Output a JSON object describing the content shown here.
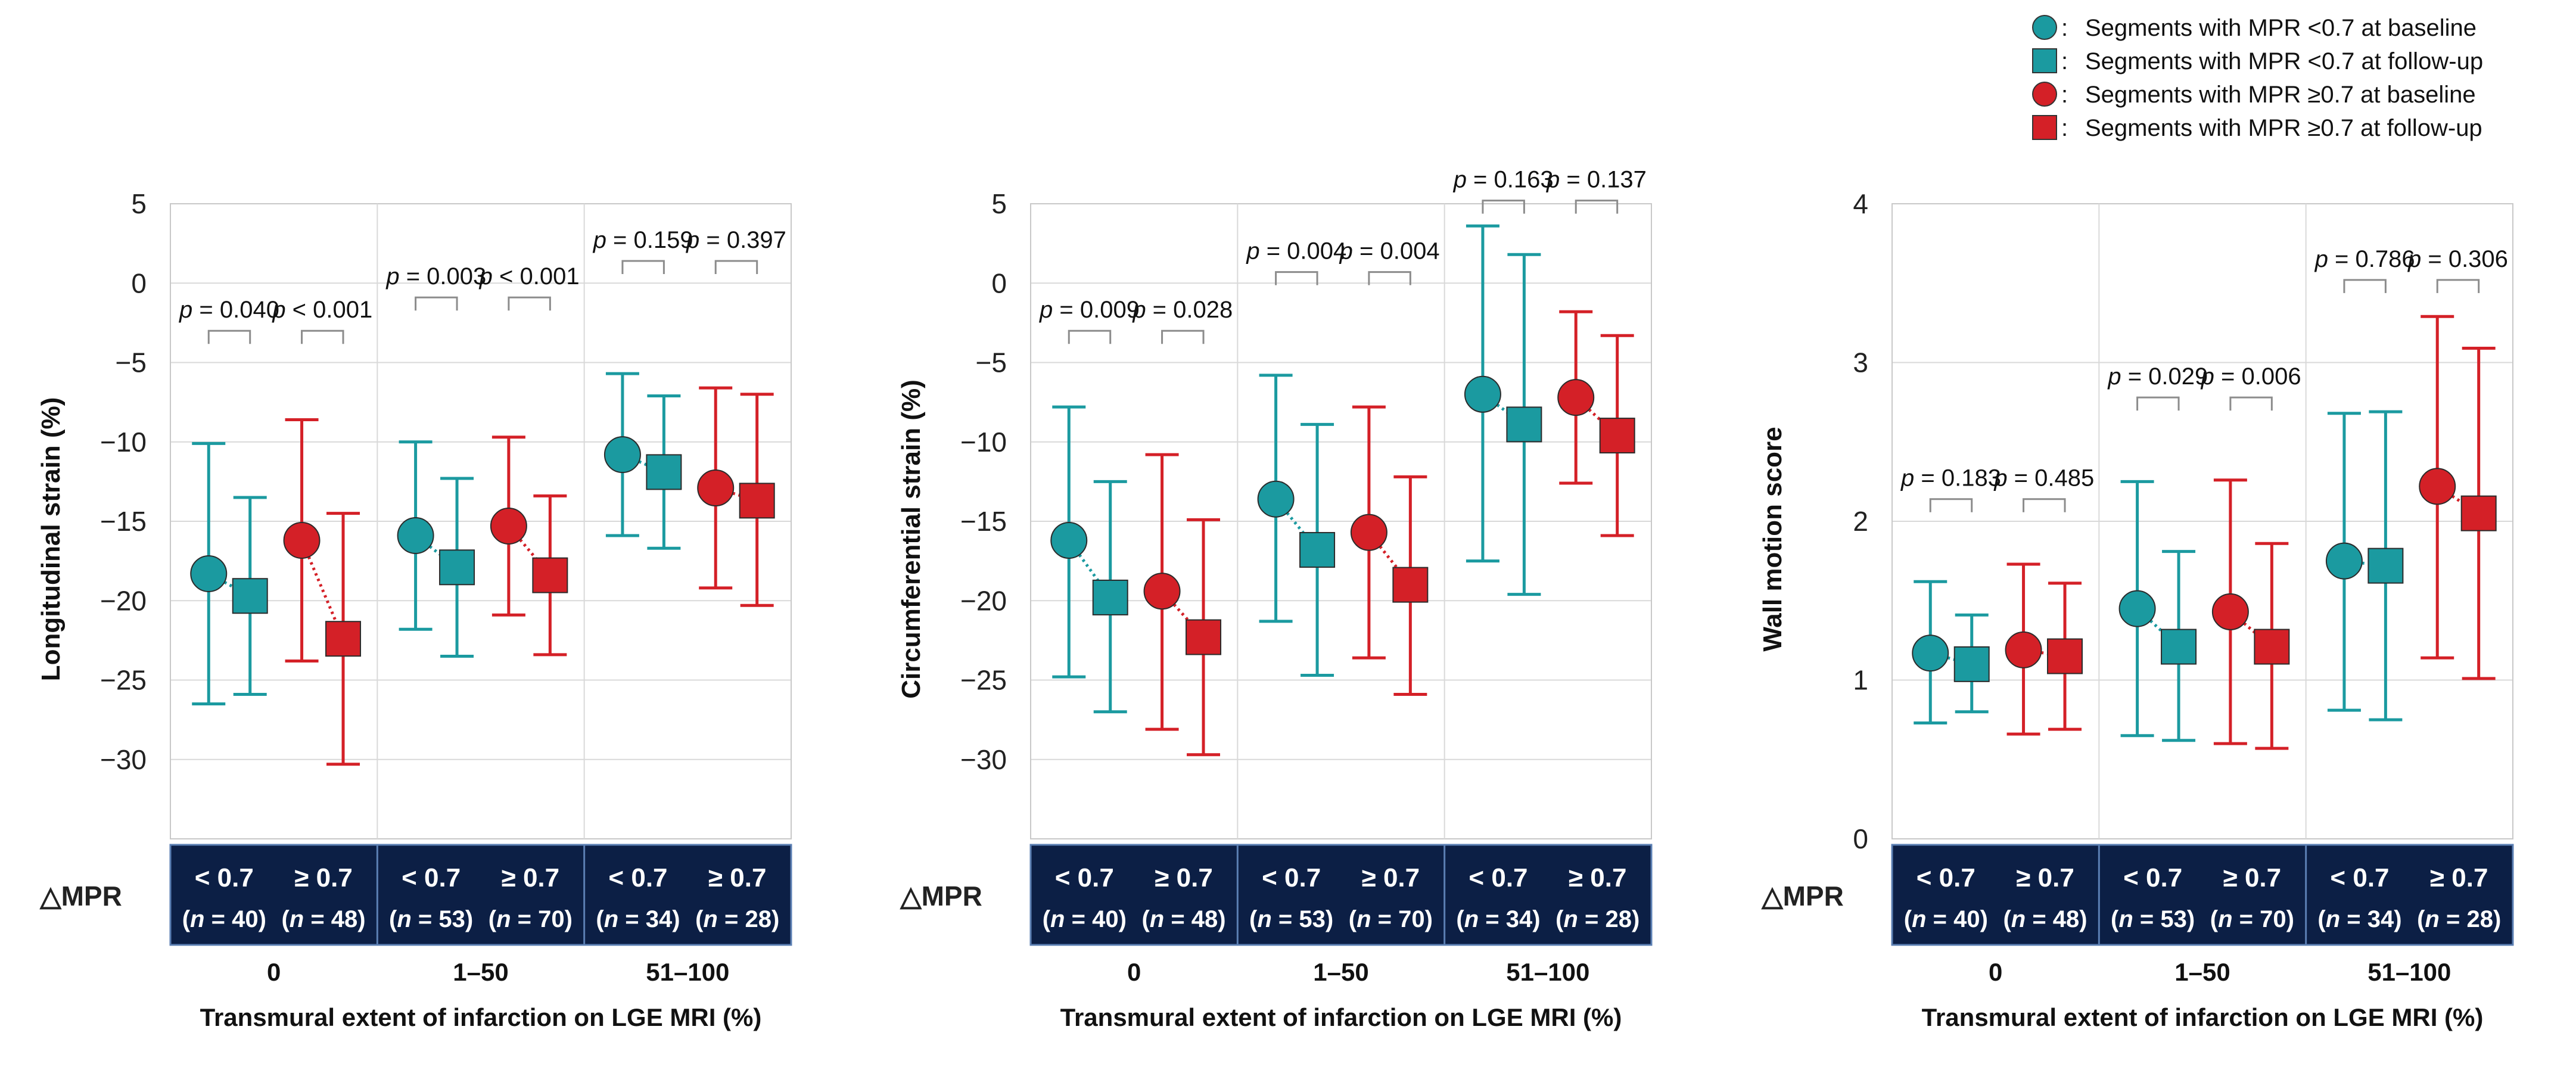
{
  "colors": {
    "teal": "#1b9aa0",
    "red": "#d42027",
    "box": "#0c1f45",
    "grid": "#d9d9d9"
  },
  "legend": [
    {
      "symbol": "circle",
      "color": "#1b9aa0",
      "label": "Segments with MPR <0.7 at baseline"
    },
    {
      "symbol": "square",
      "color": "#1b9aa0",
      "label": "Segments with MPR <0.7 at follow-up"
    },
    {
      "symbol": "circle",
      "color": "#d42027",
      "label": "Segments with MPR ≥0.7 at baseline"
    },
    {
      "symbol": "square",
      "color": "#d42027",
      "label": "Segments with MPR ≥0.7 at follow-up"
    }
  ],
  "mpr_row_label": "△MPR",
  "box_groups": [
    {
      "label": "0",
      "cells": [
        {
          "top": "< 0.7",
          "bottom": "(n = 40)"
        },
        {
          "top": "≥ 0.7",
          "bottom": "(n = 48)"
        }
      ]
    },
    {
      "label": "1–50",
      "cells": [
        {
          "top": "< 0.7",
          "bottom": "(n = 53)"
        },
        {
          "top": "≥ 0.7",
          "bottom": "(n = 70)"
        }
      ]
    },
    {
      "label": "51–100",
      "cells": [
        {
          "top": "< 0.7",
          "bottom": "(n = 34)"
        },
        {
          "top": "≥ 0.7",
          "bottom": "(n = 28)"
        }
      ]
    }
  ],
  "chart_data": [
    {
      "type": "scatter",
      "title": "",
      "ylabel": "Longitudinal strain (%)",
      "xlabel": "Transmural extent of infarction on LGE MRI (%)",
      "ylim": [
        -35,
        5
      ],
      "yticks": [
        5,
        0,
        -5,
        -10,
        -15,
        -20,
        -25,
        -30
      ],
      "groups": [
        "0",
        "1–50",
        "51–100"
      ],
      "series": [
        {
          "name": "Segments with MPR <0.7 at baseline",
          "marker": "circle",
          "color": "#1b9aa0",
          "mean": [
            -18.3,
            -15.9,
            -10.8
          ],
          "upper": [
            -10.1,
            -10.0,
            -5.7
          ],
          "lower": [
            -26.5,
            -21.8,
            -15.9
          ]
        },
        {
          "name": "Segments with MPR <0.7 at follow-up",
          "marker": "square",
          "color": "#1b9aa0",
          "mean": [
            -19.7,
            -17.9,
            -11.9
          ],
          "upper": [
            -13.5,
            -12.3,
            -7.1
          ],
          "lower": [
            -25.9,
            -23.5,
            -16.7
          ]
        },
        {
          "name": "Segments with MPR ≥0.7 at baseline",
          "marker": "circle",
          "color": "#d42027",
          "mean": [
            -16.2,
            -15.3,
            -12.9
          ],
          "upper": [
            -8.6,
            -9.7,
            -6.6
          ],
          "lower": [
            -23.8,
            -20.9,
            -19.2
          ]
        },
        {
          "name": "Segments with MPR ≥0.7 at follow-up",
          "marker": "square",
          "color": "#d42027",
          "mean": [
            -22.4,
            -18.4,
            -13.7
          ],
          "upper": [
            -14.5,
            -13.4,
            -7.0
          ],
          "lower": [
            -30.3,
            -23.4,
            -20.3
          ]
        }
      ],
      "p_values": [
        {
          "text": "p = 0.040",
          "group": 0,
          "pair": 0,
          "y": -3.0
        },
        {
          "text": "p < 0.001",
          "group": 0,
          "pair": 1,
          "y": -3.0
        },
        {
          "text": "p = 0.003",
          "group": 1,
          "pair": 0,
          "y": -0.9
        },
        {
          "text": "p < 0.001",
          "group": 1,
          "pair": 1,
          "y": -0.9
        },
        {
          "text": "p = 0.159",
          "group": 2,
          "pair": 0,
          "y": 1.4
        },
        {
          "text": "p = 0.397",
          "group": 2,
          "pair": 1,
          "y": 1.4
        }
      ]
    },
    {
      "type": "scatter",
      "title": "",
      "ylabel": "Circumferential strain (%)",
      "xlabel": "Transmural extent of infarction on LGE MRI (%)",
      "ylim": [
        -35,
        5
      ],
      "yticks": [
        5,
        0,
        -5,
        -10,
        -15,
        -20,
        -25,
        -30
      ],
      "groups": [
        "0",
        "1–50",
        "51–100"
      ],
      "series": [
        {
          "name": "Segments with MPR <0.7 at baseline",
          "marker": "circle",
          "color": "#1b9aa0",
          "mean": [
            -16.2,
            -13.6,
            -7.0
          ],
          "upper": [
            -7.8,
            -5.8,
            3.6
          ],
          "lower": [
            -24.8,
            -21.3,
            -17.5
          ]
        },
        {
          "name": "Segments with MPR <0.7 at follow-up",
          "marker": "square",
          "color": "#1b9aa0",
          "mean": [
            -19.8,
            -16.8,
            -8.9
          ],
          "upper": [
            -12.5,
            -8.9,
            1.8
          ],
          "lower": [
            -27.0,
            -24.7,
            -19.6
          ]
        },
        {
          "name": "Segments with MPR ≥0.7 at baseline",
          "marker": "circle",
          "color": "#d42027",
          "mean": [
            -19.4,
            -15.7,
            -7.2
          ],
          "upper": [
            -10.8,
            -7.8,
            -1.8
          ],
          "lower": [
            -28.1,
            -23.6,
            -12.6
          ]
        },
        {
          "name": "Segments with MPR ≥0.7 at follow-up",
          "marker": "square",
          "color": "#d42027",
          "mean": [
            -22.3,
            -19.0,
            -9.6
          ],
          "upper": [
            -14.9,
            -12.2,
            -3.3
          ],
          "lower": [
            -29.7,
            -25.9,
            -15.9
          ]
        }
      ],
      "p_values": [
        {
          "text": "p = 0.009",
          "group": 0,
          "pair": 0,
          "y": -3.0
        },
        {
          "text": "p = 0.028",
          "group": 0,
          "pair": 1,
          "y": -3.0
        },
        {
          "text": "p = 0.004",
          "group": 1,
          "pair": 0,
          "y": 0.7
        },
        {
          "text": "p = 0.004",
          "group": 1,
          "pair": 1,
          "y": 0.7
        },
        {
          "text": "p = 0.163",
          "group": 2,
          "pair": 0,
          "y": 5.2
        },
        {
          "text": "p = 0.137",
          "group": 2,
          "pair": 1,
          "y": 5.2
        }
      ]
    },
    {
      "type": "scatter",
      "title": "",
      "ylabel": "Wall motion score",
      "xlabel": "Transmural extent of infarction on LGE MRI (%)",
      "ylim": [
        0,
        4
      ],
      "yticks": [
        4,
        3,
        2,
        1,
        0
      ],
      "groups": [
        "0",
        "1–50",
        "51–100"
      ],
      "series": [
        {
          "name": "Segments with MPR <0.7 at baseline",
          "marker": "circle",
          "color": "#1b9aa0",
          "mean": [
            1.17,
            1.45,
            1.75
          ],
          "upper": [
            1.62,
            2.25,
            2.68
          ],
          "lower": [
            0.73,
            0.65,
            0.81
          ]
        },
        {
          "name": "Segments with MPR <0.7 at follow-up",
          "marker": "square",
          "color": "#1b9aa0",
          "mean": [
            1.1,
            1.21,
            1.72
          ],
          "upper": [
            1.41,
            1.81,
            2.69
          ],
          "lower": [
            0.8,
            0.62,
            0.75
          ]
        },
        {
          "name": "Segments with MPR ≥0.7 at baseline",
          "marker": "circle",
          "color": "#d42027",
          "mean": [
            1.19,
            1.43,
            2.22
          ],
          "upper": [
            1.73,
            2.26,
            3.29
          ],
          "lower": [
            0.66,
            0.6,
            1.14
          ]
        },
        {
          "name": "Segments with MPR ≥0.7 at follow-up",
          "marker": "square",
          "color": "#d42027",
          "mean": [
            1.15,
            1.21,
            2.05
          ],
          "upper": [
            1.61,
            1.86,
            3.09
          ],
          "lower": [
            0.69,
            0.57,
            1.01
          ]
        }
      ],
      "p_values": [
        {
          "text": "p = 0.183",
          "group": 0,
          "pair": 0,
          "y": 2.14
        },
        {
          "text": "p = 0.485",
          "group": 0,
          "pair": 1,
          "y": 2.14
        },
        {
          "text": "p = 0.029",
          "group": 1,
          "pair": 0,
          "y": 2.78
        },
        {
          "text": "p = 0.006",
          "group": 1,
          "pair": 1,
          "y": 2.78
        },
        {
          "text": "p = 0.786",
          "group": 2,
          "pair": 0,
          "y": 3.52
        },
        {
          "text": "p = 0.306",
          "group": 2,
          "pair": 1,
          "y": 3.52
        }
      ]
    }
  ]
}
